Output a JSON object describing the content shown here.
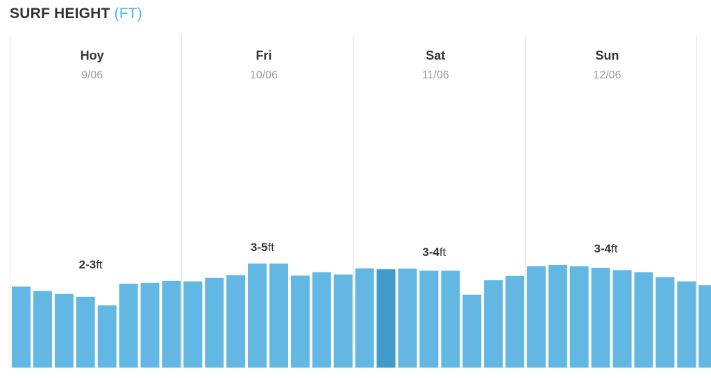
{
  "header": {
    "title": "SURF HEIGHT",
    "unit": "(FT)"
  },
  "colors": {
    "bar": "#62b8e3",
    "bar_selected": "#3e9cc9",
    "divider": "#e2e2e2",
    "unit": "#4fb3e8"
  },
  "chart_data": {
    "type": "bar",
    "title": "SURF HEIGHT (FT)",
    "ylabel": "",
    "ylim": [
      0,
      6
    ],
    "selected_index": 17,
    "days": [
      {
        "name": "Hoy",
        "date": "9/06",
        "range": "2-3",
        "unit": "ft",
        "values": [
          2.8,
          2.65,
          2.55,
          2.45,
          2.15,
          2.9,
          2.93,
          3.0
        ]
      },
      {
        "name": "Fri",
        "date": "10/06",
        "range": "3-5",
        "unit": "ft",
        "values": [
          2.98,
          3.1,
          3.2,
          3.6,
          3.6,
          3.18,
          3.3,
          3.22
        ]
      },
      {
        "name": "Sat",
        "date": "11/06",
        "range": "3-4",
        "unit": "ft",
        "values": [
          3.43,
          3.4,
          3.42,
          3.35,
          3.35,
          2.52,
          3.02,
          3.17
        ]
      },
      {
        "name": "Sun",
        "date": "12/06",
        "range": "3-4",
        "unit": "ft",
        "values": [
          3.5,
          3.55,
          3.5,
          3.45,
          3.37,
          3.3,
          3.13,
          2.98
        ]
      },
      {
        "name": "",
        "date": "",
        "range": "",
        "unit": "",
        "values": [
          2.85
        ]
      }
    ]
  }
}
